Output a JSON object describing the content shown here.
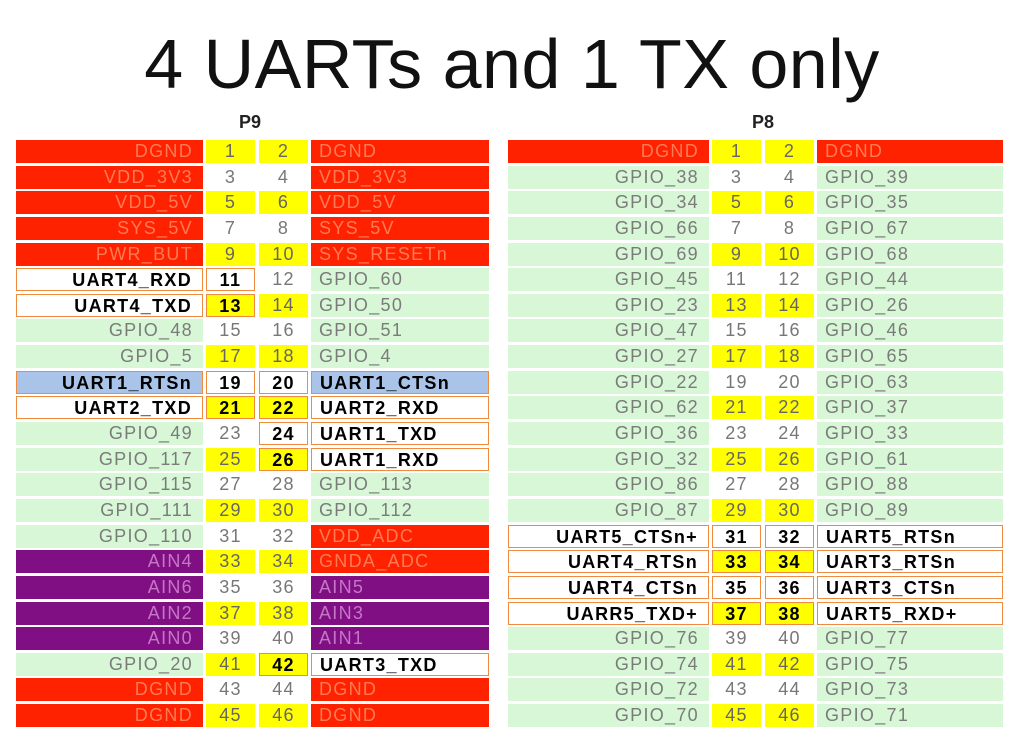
{
  "slide": {
    "title": "4 UARTs and 1 TX only"
  },
  "headers": [
    {
      "id": "p9",
      "label": "P9"
    },
    {
      "id": "p8",
      "label": "P8"
    }
  ],
  "colors": {
    "power": "#ff2200",
    "gpio": "#d7f7d7",
    "analog": "#800f84",
    "uart": "#ffffff",
    "uart_highlight": "#a9c4e8",
    "uart_border": "#f08a3c",
    "pin_yellow": "#ffff00"
  },
  "p9": [
    {
      "left": "DGND",
      "l": "1",
      "r": "2",
      "right": "DGND",
      "lt": "power",
      "rt": "power",
      "ln": "yellow",
      "rn": "yellow"
    },
    {
      "left": "VDD_3V3",
      "l": "3",
      "r": "4",
      "right": "VDD_3V3",
      "lt": "power",
      "rt": "power",
      "ln": "plain",
      "rn": "plain"
    },
    {
      "left": "VDD_5V",
      "l": "5",
      "r": "6",
      "right": "VDD_5V",
      "lt": "power",
      "rt": "power",
      "ln": "yellow",
      "rn": "yellow"
    },
    {
      "left": "SYS_5V",
      "l": "7",
      "r": "8",
      "right": "SYS_5V",
      "lt": "power",
      "rt": "power",
      "ln": "plain",
      "rn": "plain"
    },
    {
      "left": "PWR_BUT",
      "l": "9",
      "r": "10",
      "right": "SYS_RESETn",
      "lt": "power",
      "rt": "power",
      "ln": "yellow",
      "rn": "yellow"
    },
    {
      "left": "UART4_RXD",
      "l": "11",
      "r": "12",
      "right": "GPIO_60",
      "lt": "uart",
      "rt": "gpio",
      "ln": "uart-w",
      "rn": "plain"
    },
    {
      "left": "UART4_TXD",
      "l": "13",
      "r": "14",
      "right": "GPIO_50",
      "lt": "uart",
      "rt": "gpio",
      "ln": "uart-y",
      "rn": "yellow"
    },
    {
      "left": "GPIO_48",
      "l": "15",
      "r": "16",
      "right": "GPIO_51",
      "lt": "gpio",
      "rt": "gpio",
      "ln": "plain",
      "rn": "plain"
    },
    {
      "left": "GPIO_5",
      "l": "17",
      "r": "18",
      "right": "GPIO_4",
      "lt": "gpio",
      "rt": "gpio",
      "ln": "yellow",
      "rn": "yellow"
    },
    {
      "left": "UART1_RTSn",
      "l": "19",
      "r": "20",
      "right": "UART1_CTSn",
      "lt": "cts",
      "rt": "cts",
      "ln": "uart-w",
      "rn": "uart-w"
    },
    {
      "left": "UART2_TXD",
      "l": "21",
      "r": "22",
      "right": "UART2_RXD",
      "lt": "uart",
      "rt": "uart",
      "ln": "uart-y",
      "rn": "uart-y"
    },
    {
      "left": "GPIO_49",
      "l": "23",
      "r": "24",
      "right": "UART1_TXD",
      "lt": "gpio",
      "rt": "uart",
      "ln": "plain",
      "rn": "uart-w"
    },
    {
      "left": "GPIO_117",
      "l": "25",
      "r": "26",
      "right": "UART1_RXD",
      "lt": "gpio",
      "rt": "uart",
      "ln": "yellow",
      "rn": "uart-y"
    },
    {
      "left": "GPIO_115",
      "l": "27",
      "r": "28",
      "right": "GPIO_113",
      "lt": "gpio",
      "rt": "gpio",
      "ln": "plain",
      "rn": "plain"
    },
    {
      "left": "GPIO_111",
      "l": "29",
      "r": "30",
      "right": "GPIO_112",
      "lt": "gpio",
      "rt": "gpio",
      "ln": "yellow",
      "rn": "yellow"
    },
    {
      "left": "GPIO_110",
      "l": "31",
      "r": "32",
      "right": "VDD_ADC",
      "lt": "gpio",
      "rt": "power",
      "ln": "plain",
      "rn": "plain"
    },
    {
      "left": "AIN4",
      "l": "33",
      "r": "34",
      "right": "GNDA_ADC",
      "lt": "analog",
      "rt": "power",
      "ln": "yellow",
      "rn": "yellow"
    },
    {
      "left": "AIN6",
      "l": "35",
      "r": "36",
      "right": "AIN5",
      "lt": "analog",
      "rt": "analog",
      "ln": "plain",
      "rn": "plain"
    },
    {
      "left": "AIN2",
      "l": "37",
      "r": "38",
      "right": "AIN3",
      "lt": "analog",
      "rt": "analog",
      "ln": "yellow",
      "rn": "yellow"
    },
    {
      "left": "AIN0",
      "l": "39",
      "r": "40",
      "right": "AIN1",
      "lt": "analog",
      "rt": "analog",
      "ln": "plain",
      "rn": "plain"
    },
    {
      "left": "GPIO_20",
      "l": "41",
      "r": "42",
      "right": "UART3_TXD",
      "lt": "gpio",
      "rt": "uart",
      "ln": "yellow",
      "rn": "uart-y"
    },
    {
      "left": "DGND",
      "l": "43",
      "r": "44",
      "right": "DGND",
      "lt": "power",
      "rt": "power",
      "ln": "plain",
      "rn": "plain"
    },
    {
      "left": "DGND",
      "l": "45",
      "r": "46",
      "right": "DGND",
      "lt": "power",
      "rt": "power",
      "ln": "yellow",
      "rn": "yellow"
    }
  ],
  "p8": [
    {
      "left": "DGND",
      "l": "1",
      "r": "2",
      "right": "DGND",
      "lt": "power",
      "rt": "power",
      "ln": "yellow",
      "rn": "yellow"
    },
    {
      "left": "GPIO_38",
      "l": "3",
      "r": "4",
      "right": "GPIO_39",
      "lt": "gpio",
      "rt": "gpio",
      "ln": "plain",
      "rn": "plain"
    },
    {
      "left": "GPIO_34",
      "l": "5",
      "r": "6",
      "right": "GPIO_35",
      "lt": "gpio",
      "rt": "gpio",
      "ln": "yellow",
      "rn": "yellow"
    },
    {
      "left": "GPIO_66",
      "l": "7",
      "r": "8",
      "right": "GPIO_67",
      "lt": "gpio",
      "rt": "gpio",
      "ln": "plain",
      "rn": "plain"
    },
    {
      "left": "GPIO_69",
      "l": "9",
      "r": "10",
      "right": "GPIO_68",
      "lt": "gpio",
      "rt": "gpio",
      "ln": "yellow",
      "rn": "yellow"
    },
    {
      "left": "GPIO_45",
      "l": "11",
      "r": "12",
      "right": "GPIO_44",
      "lt": "gpio",
      "rt": "gpio",
      "ln": "plain",
      "rn": "plain"
    },
    {
      "left": "GPIO_23",
      "l": "13",
      "r": "14",
      "right": "GPIO_26",
      "lt": "gpio",
      "rt": "gpio",
      "ln": "yellow",
      "rn": "yellow"
    },
    {
      "left": "GPIO_47",
      "l": "15",
      "r": "16",
      "right": "GPIO_46",
      "lt": "gpio",
      "rt": "gpio",
      "ln": "plain",
      "rn": "plain"
    },
    {
      "left": "GPIO_27",
      "l": "17",
      "r": "18",
      "right": "GPIO_65",
      "lt": "gpio",
      "rt": "gpio",
      "ln": "yellow",
      "rn": "yellow"
    },
    {
      "left": "GPIO_22",
      "l": "19",
      "r": "20",
      "right": "GPIO_63",
      "lt": "gpio",
      "rt": "gpio",
      "ln": "plain",
      "rn": "plain"
    },
    {
      "left": "GPIO_62",
      "l": "21",
      "r": "22",
      "right": "GPIO_37",
      "lt": "gpio",
      "rt": "gpio",
      "ln": "yellow",
      "rn": "yellow"
    },
    {
      "left": "GPIO_36",
      "l": "23",
      "r": "24",
      "right": "GPIO_33",
      "lt": "gpio",
      "rt": "gpio",
      "ln": "plain",
      "rn": "plain"
    },
    {
      "left": "GPIO_32",
      "l": "25",
      "r": "26",
      "right": "GPIO_61",
      "lt": "gpio",
      "rt": "gpio",
      "ln": "yellow",
      "rn": "yellow"
    },
    {
      "left": "GPIO_86",
      "l": "27",
      "r": "28",
      "right": "GPIO_88",
      "lt": "gpio",
      "rt": "gpio",
      "ln": "plain",
      "rn": "plain"
    },
    {
      "left": "GPIO_87",
      "l": "29",
      "r": "30",
      "right": "GPIO_89",
      "lt": "gpio",
      "rt": "gpio",
      "ln": "yellow",
      "rn": "yellow"
    },
    {
      "left": "UART5_CTSn+",
      "l": "31",
      "r": "32",
      "right": "UART5_RTSn",
      "lt": "uart",
      "rt": "uart",
      "ln": "uart-w",
      "rn": "uart-w"
    },
    {
      "left": "UART4_RTSn",
      "l": "33",
      "r": "34",
      "right": "UART3_RTSn",
      "lt": "uart",
      "rt": "uart",
      "ln": "uart-y",
      "rn": "uart-y"
    },
    {
      "left": "UART4_CTSn",
      "l": "35",
      "r": "36",
      "right": "UART3_CTSn",
      "lt": "uart",
      "rt": "uart",
      "ln": "uart-w",
      "rn": "uart-w"
    },
    {
      "left": "UARR5_TXD+",
      "l": "37",
      "r": "38",
      "right": "UART5_RXD+",
      "lt": "uart",
      "rt": "uart",
      "ln": "uart-y",
      "rn": "uart-y"
    },
    {
      "left": "GPIO_76",
      "l": "39",
      "r": "40",
      "right": "GPIO_77",
      "lt": "gpio",
      "rt": "gpio",
      "ln": "plain",
      "rn": "plain"
    },
    {
      "left": "GPIO_74",
      "l": "41",
      "r": "42",
      "right": "GPIO_75",
      "lt": "gpio",
      "rt": "gpio",
      "ln": "yellow",
      "rn": "yellow"
    },
    {
      "left": "GPIO_72",
      "l": "43",
      "r": "44",
      "right": "GPIO_73",
      "lt": "gpio",
      "rt": "gpio",
      "ln": "plain",
      "rn": "plain"
    },
    {
      "left": "GPIO_70",
      "l": "45",
      "r": "46",
      "right": "GPIO_71",
      "lt": "gpio",
      "rt": "gpio",
      "ln": "yellow",
      "rn": "yellow"
    }
  ]
}
